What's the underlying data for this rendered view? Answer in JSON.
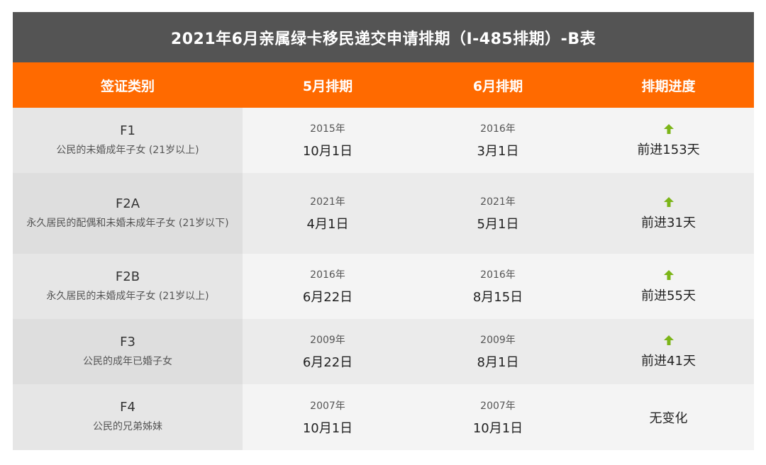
{
  "title": "2021年6月亲属绿卡移民递交申请排期（I-485排期）-B表",
  "headers": {
    "category": "签证类别",
    "may": "5月排期",
    "june": "6月排期",
    "progress": "排期进度"
  },
  "accent_color": "#ff6a00",
  "arrow_color": "#7cb518",
  "rows": [
    {
      "code": "F1",
      "desc": "公民的未婚成年子女 (21岁以上)",
      "may_year": "2015年",
      "may_date": "10月1日",
      "june_year": "2016年",
      "june_date": "3月1日",
      "progress": "前进153天",
      "arrow": true
    },
    {
      "code": "F2A",
      "desc": "永久居民的配偶和未婚未成年子女 (21岁以下)",
      "may_year": "2021年",
      "may_date": "4月1日",
      "june_year": "2021年",
      "june_date": "5月1日",
      "progress": "前进31天",
      "arrow": true
    },
    {
      "code": "F2B",
      "desc": "永久居民的未婚成年子女 (21岁以上)",
      "may_year": "2016年",
      "may_date": "6月22日",
      "june_year": "2016年",
      "june_date": "8月15日",
      "progress": "前进55天",
      "arrow": true
    },
    {
      "code": "F3",
      "desc": "公民的成年已婚子女",
      "may_year": "2009年",
      "may_date": "6月22日",
      "june_year": "2009年",
      "june_date": "8月1日",
      "progress": "前进41天",
      "arrow": true
    },
    {
      "code": "F4",
      "desc": "公民的兄弟姊妹",
      "may_year": "2007年",
      "may_date": "10月1日",
      "june_year": "2007年",
      "june_date": "10月1日",
      "progress": "无变化",
      "arrow": false
    }
  ]
}
